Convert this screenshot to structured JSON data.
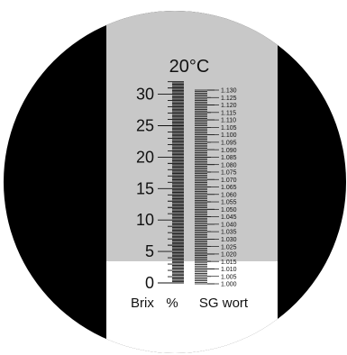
{
  "temperature_label": "20°C",
  "brix_unit_label": "Brix",
  "brix_percent_label": "%",
  "sg_unit_label": "SG wort",
  "scale_boundary_brix": 4.4,
  "brix_scale": {
    "min": 0,
    "max": 32,
    "labeled_values": [
      "0",
      "5",
      "10",
      "15",
      "20",
      "25",
      "30"
    ]
  },
  "sg_scale": {
    "min": 1.0,
    "max": 1.13,
    "labels": [
      "1.000",
      "1.005",
      "1.010",
      "1.015",
      "1.020",
      "1.025",
      "1.030",
      "1.035",
      "1.040",
      "1.045",
      "1.050",
      "1.055",
      "1.060",
      "1.065",
      "1.070",
      "1.075",
      "1.080",
      "1.085",
      "1.090",
      "1.095",
      "1.100",
      "1.105",
      "1.110",
      "1.115",
      "1.120",
      "1.125",
      "1.130"
    ]
  },
  "colors": {
    "eyepiece": "#000000",
    "field_upper": "#c8c8c8",
    "field_lower": "#ffffff",
    "scale_ink": "#111111"
  }
}
